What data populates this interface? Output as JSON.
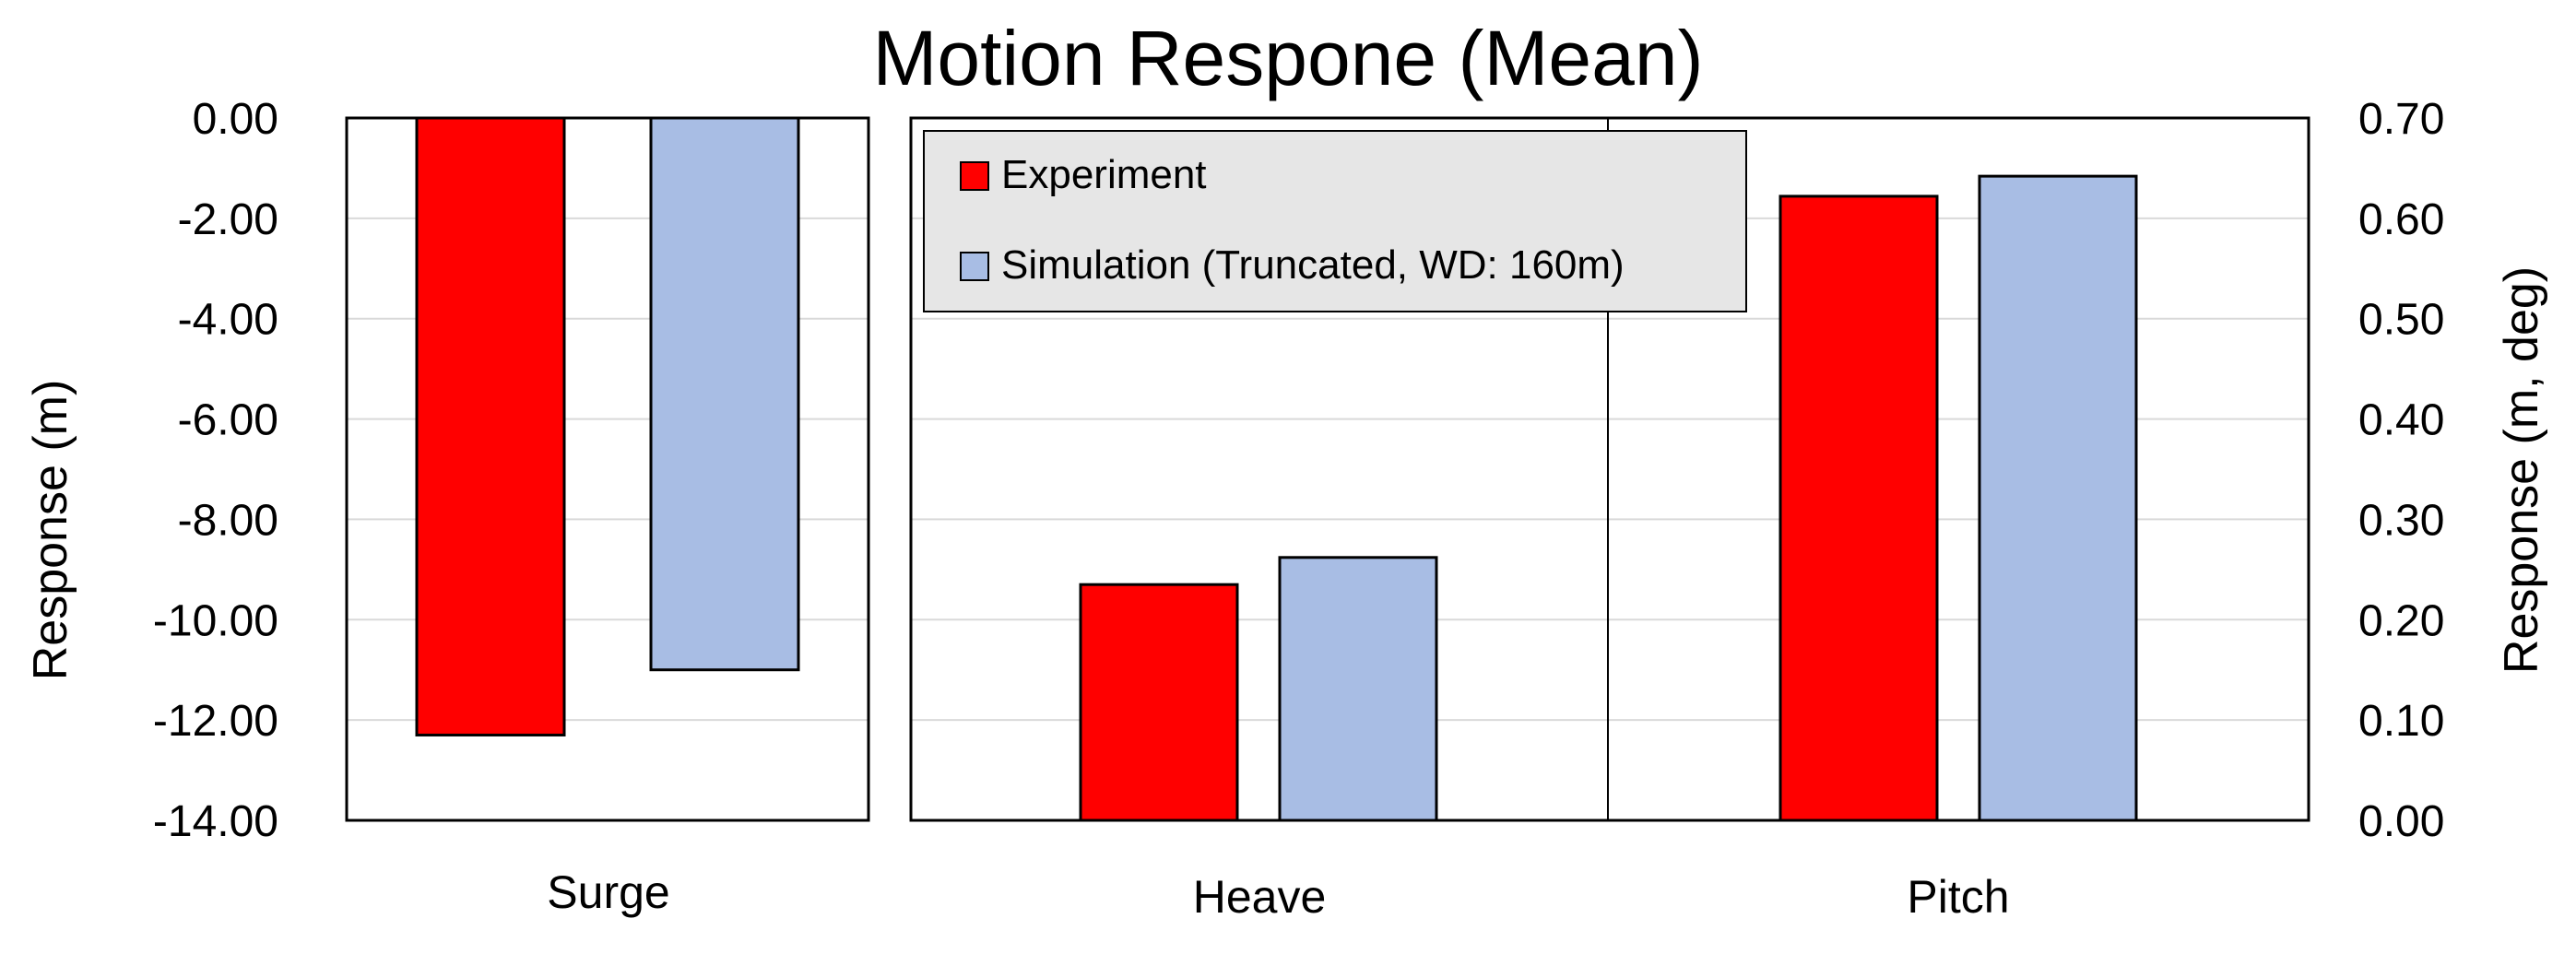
{
  "chart_data": {
    "type": "bar",
    "title": "Motion Respone (Mean)",
    "colors": {
      "experiment": "#ff0000",
      "simulation": "#a8bde4",
      "legend_bg": "#e6e6e6",
      "grid": "#d9d9d9"
    },
    "left_axis": {
      "label": "Response (m)",
      "ylim": [
        -14,
        0
      ],
      "ticks": [
        "0.00",
        "-2.00",
        "-4.00",
        "-6.00",
        "-8.00",
        "-10.00",
        "-12.00",
        "-14.00"
      ]
    },
    "right_axis": {
      "label": "Response (m, deg)",
      "ylim": [
        0,
        0.7
      ],
      "ticks": [
        "0.70",
        "0.60",
        "0.50",
        "0.40",
        "0.30",
        "0.20",
        "0.10",
        "0.00"
      ]
    },
    "categories": [
      "Surge",
      "Heave",
      "Pitch"
    ],
    "series": [
      {
        "name": "Experiment",
        "values": [
          -12.3,
          0.235,
          0.622
        ]
      },
      {
        "name": "Simulation (Truncated, WD: 160m)",
        "values": [
          -11.0,
          0.262,
          0.642
        ]
      }
    ],
    "legend": {
      "position": "top-left of right panel"
    },
    "grid": true
  }
}
